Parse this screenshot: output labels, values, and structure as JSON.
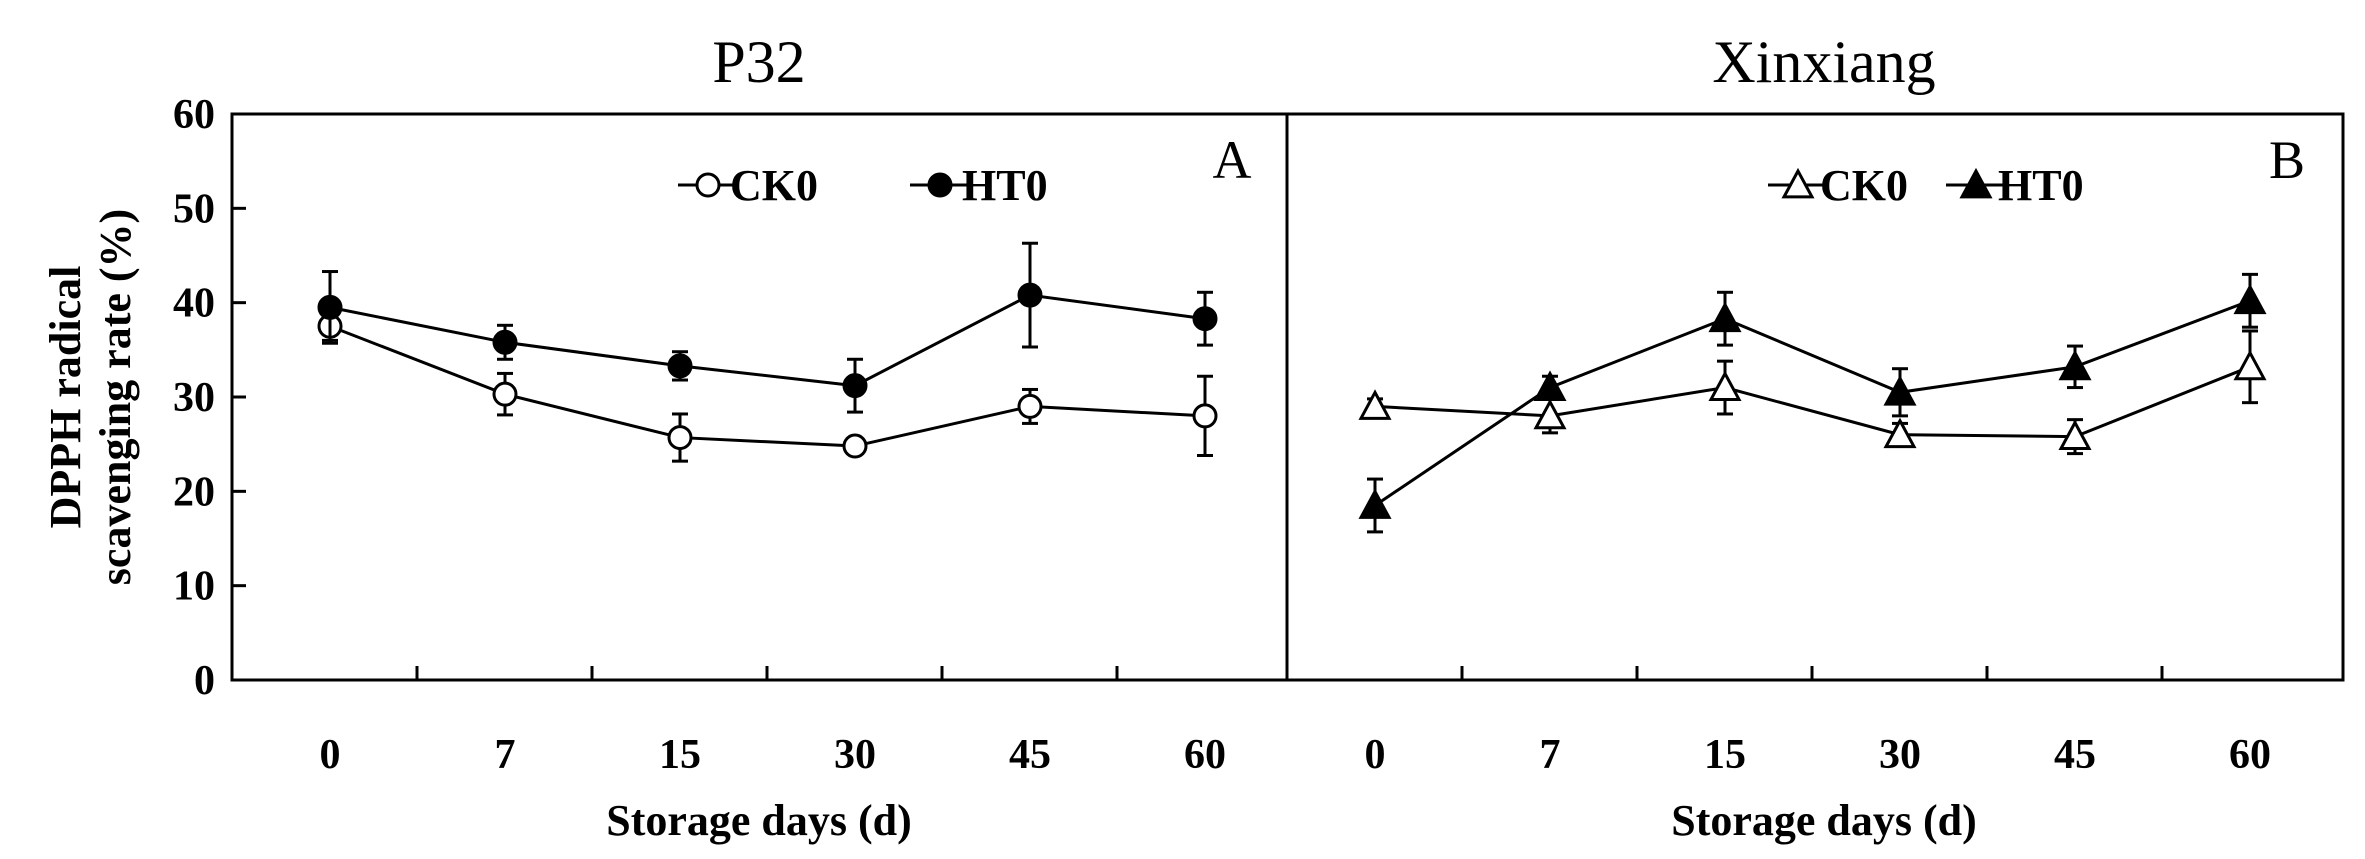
{
  "chart_data": [
    {
      "type": "line",
      "title": "P32",
      "panel_label": "A",
      "xlabel": "Storage days (d)",
      "ylabel_line1": "DPPH radical",
      "ylabel_line2": "scavenging rate (%)",
      "categories": [
        "0",
        "7",
        "15",
        "30",
        "45",
        "60"
      ],
      "yticks": [
        "0",
        "10",
        "20",
        "30",
        "40",
        "50",
        "60"
      ],
      "ylim": [
        0,
        60
      ],
      "legend_position": "top-right",
      "series": [
        {
          "name": "CK0",
          "marker": "open-circle",
          "values": [
            37.5,
            30.3,
            25.7,
            24.8,
            29.0,
            28.0
          ],
          "errors": [
            1.5,
            2.2,
            2.5,
            0.8,
            1.8,
            4.2
          ]
        },
        {
          "name": "HT0",
          "marker": "filled-circle",
          "values": [
            39.5,
            35.8,
            33.3,
            31.2,
            40.8,
            38.3
          ],
          "errors": [
            3.8,
            1.8,
            1.5,
            2.8,
            5.5,
            2.8
          ]
        }
      ]
    },
    {
      "type": "line",
      "title": "Xinxiang",
      "panel_label": "B",
      "xlabel": "Storage days (d)",
      "categories": [
        "0",
        "7",
        "15",
        "30",
        "45",
        "60"
      ],
      "ylim": [
        0,
        60
      ],
      "legend_position": "top-right",
      "series": [
        {
          "name": "CK0",
          "marker": "open-triangle",
          "values": [
            29.0,
            28.0,
            31.0,
            26.0,
            25.8,
            33.2
          ],
          "errors": [
            0.8,
            1.8,
            2.8,
            1.2,
            1.8,
            3.8
          ]
        },
        {
          "name": "HT0",
          "marker": "filled-triangle",
          "values": [
            18.5,
            31.0,
            38.3,
            30.5,
            33.2,
            40.2
          ],
          "errors": [
            2.8,
            1.2,
            2.8,
            2.5,
            2.2,
            2.8
          ]
        }
      ]
    }
  ]
}
